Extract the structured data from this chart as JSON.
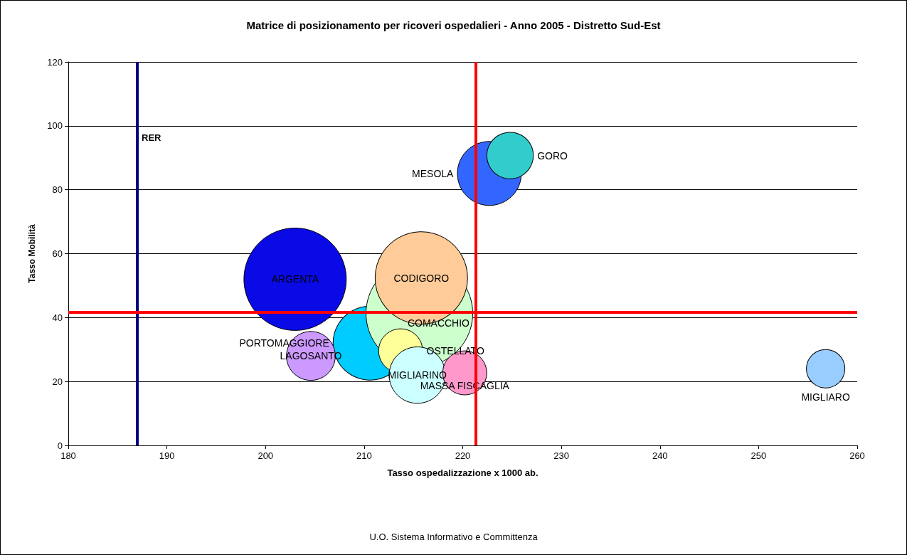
{
  "chart_data": {
    "type": "bubble",
    "title": "Matrice di posizionamento per ricoveri ospedalieri - Anno 2005 - Distretto Sud-Est",
    "xlabel": "Tasso ospedalizzazione x 1000 ab.",
    "ylabel": "Tasso Mobilità",
    "xlim": [
      180,
      260
    ],
    "xticks": [
      180,
      190,
      200,
      210,
      220,
      230,
      240,
      250,
      260
    ],
    "ylim": [
      0,
      120
    ],
    "yticks": [
      0,
      20,
      40,
      60,
      80,
      100,
      120
    ],
    "grid": "y",
    "legend": false,
    "series": [
      {
        "name": "ARGENTA",
        "color": "#0a0ae6",
        "x": [
          203.0
        ],
        "values": [
          52
        ],
        "sizes": [
          0.92
        ]
      },
      {
        "name": "PORTOMAGGIORE",
        "color": "#00ccff",
        "x": [
          210.6
        ],
        "values": [
          32
        ],
        "sizes": [
          0.48
        ]
      },
      {
        "name": "COMACCHIO",
        "color": "#ccffcc",
        "x": [
          215.6
        ],
        "values": [
          41.3
        ],
        "sizes": [
          1
        ]
      },
      {
        "name": "CODIGORO",
        "color": "#ffcc99",
        "x": [
          215.8
        ],
        "values": [
          52.4
        ],
        "sizes": [
          0.75
        ]
      },
      {
        "name": "MESOLA",
        "color": "#3366ff",
        "x": [
          222.7
        ],
        "values": [
          85.1
        ],
        "sizes": [
          0.36
        ]
      },
      {
        "name": "LAGOSANTO",
        "color": "#cc99ff",
        "x": [
          204.6
        ],
        "values": [
          28
        ],
        "sizes": [
          0.21
        ]
      },
      {
        "name": "GORO",
        "color": "#33cccc",
        "x": [
          224.8
        ],
        "values": [
          90.7
        ],
        "sizes": [
          0.19
        ]
      },
      {
        "name": "OSTELLATO",
        "color": "#ffff99",
        "x": [
          213.7
        ],
        "values": [
          29.6
        ],
        "sizes": [
          0.17
        ]
      },
      {
        "name": "MIGLIARINO",
        "color": "#ccffff",
        "x": [
          215.4
        ],
        "values": [
          22
        ],
        "sizes": [
          0.28
        ]
      },
      {
        "name": "MASSA FISCAGLIA",
        "color": "#ff99cc",
        "x": [
          220.2
        ],
        "values": [
          22.7
        ],
        "sizes": [
          0.17
        ]
      },
      {
        "name": "MIGLIARO",
        "color": "#99ccff",
        "x": [
          256.8
        ],
        "values": [
          24
        ],
        "sizes": [
          0.13
        ]
      }
    ],
    "ref_lines": [
      {
        "axis": "x",
        "value": 187,
        "label": "RER",
        "color": "#000080"
      },
      {
        "axis": "x",
        "value": 221.3,
        "color": "#ff0000"
      },
      {
        "axis": "y",
        "value": 41.7,
        "color": "#ff0000"
      }
    ],
    "annotations": [
      "U.O. Sistema Informativo e Committenza"
    ]
  }
}
